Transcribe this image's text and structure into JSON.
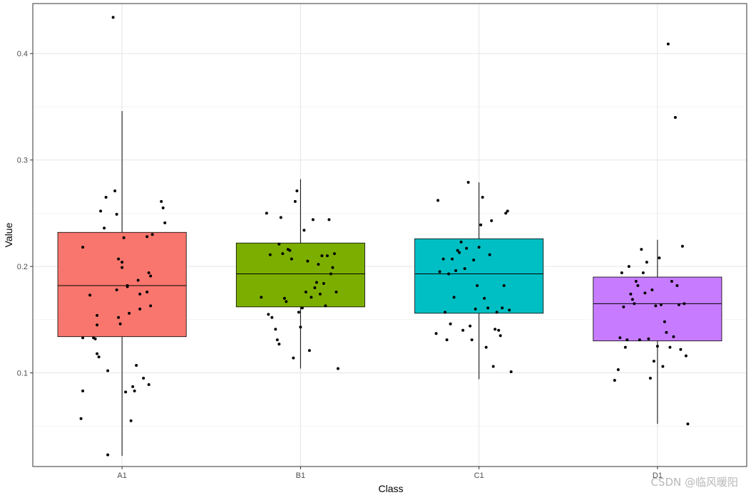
{
  "chart_data": {
    "type": "boxplot",
    "title": "",
    "xlabel": "Class",
    "ylabel": "Value",
    "ylim": [
      0.012,
      0.447
    ],
    "y_ticks": [
      0.1,
      0.2,
      0.3,
      0.4
    ],
    "y_tick_labels": [
      "0.1",
      "0.2",
      "0.3",
      "0.4"
    ],
    "grid": true,
    "categories": [
      "A1",
      "B1",
      "C1",
      "D1"
    ],
    "colors": [
      "#F8766D",
      "#7CAE00",
      "#00BFC4",
      "#C77CFF"
    ],
    "boxes": [
      {
        "category": "A1",
        "whisker_low": 0.022,
        "q1": 0.134,
        "median": 0.182,
        "q3": 0.232,
        "whisker_high": 0.346
      },
      {
        "category": "B1",
        "whisker_low": 0.104,
        "q1": 0.162,
        "median": 0.193,
        "q3": 0.222,
        "whisker_high": 0.282
      },
      {
        "category": "C1",
        "whisker_low": 0.094,
        "q1": 0.156,
        "median": 0.193,
        "q3": 0.226,
        "whisker_high": 0.279
      },
      {
        "category": "D1",
        "whisker_low": 0.052,
        "q1": 0.13,
        "median": 0.165,
        "q3": 0.19,
        "whisker_high": 0.225
      }
    ],
    "points": [
      {
        "category": "A1",
        "jitter": [
          -0.23,
          -0.22,
          -0.22,
          -0.22,
          -0.18,
          -0.16,
          -0.15,
          -0.14,
          -0.14,
          -0.14,
          -0.13,
          -0.12,
          -0.1,
          -0.09,
          -0.08,
          -0.08,
          -0.05,
          -0.04,
          -0.03,
          -0.03,
          -0.02,
          -0.02,
          -0.01,
          0,
          0,
          0.01,
          0.02,
          0.03,
          0.03,
          0.04,
          0.05,
          0.06,
          0.07,
          0.08,
          0.09,
          0.1,
          0.1,
          0.12,
          0.14,
          0.14,
          0.15,
          0.15,
          0.16,
          0.16,
          0.17,
          0.22,
          0.23,
          0.24
        ],
        "values": [
          0.057,
          0.083,
          0.133,
          0.218,
          0.173,
          0.133,
          0.132,
          0.145,
          0.154,
          0.118,
          0.115,
          0.252,
          0.236,
          0.265,
          0.102,
          0.023,
          0.434,
          0.271,
          0.178,
          0.249,
          0.152,
          0.207,
          0.146,
          0.199,
          0.204,
          0.227,
          0.082,
          0.182,
          0.181,
          0.156,
          0.055,
          0.087,
          0.083,
          0.107,
          0.187,
          0.174,
          0.16,
          0.095,
          0.176,
          0.228,
          0.089,
          0.194,
          0.191,
          0.163,
          0.23,
          0.261,
          0.255,
          0.241
        ]
      },
      {
        "category": "B1",
        "jitter": [
          -0.22,
          -0.19,
          -0.18,
          -0.17,
          -0.16,
          -0.14,
          -0.13,
          -0.12,
          -0.12,
          -0.11,
          -0.1,
          -0.09,
          -0.08,
          -0.07,
          -0.06,
          -0.05,
          -0.04,
          -0.03,
          -0.02,
          -0.01,
          0,
          0.01,
          0.02,
          0.03,
          0.04,
          0.05,
          0.06,
          0.07,
          0.08,
          0.09,
          0.1,
          0.11,
          0.12,
          0.13,
          0.14,
          0.15,
          0.16,
          0.17,
          0.18,
          0.19,
          0.2,
          0.21
        ],
        "values": [
          0.171,
          0.25,
          0.155,
          0.211,
          0.152,
          0.141,
          0.131,
          0.127,
          0.221,
          0.246,
          0.212,
          0.17,
          0.167,
          0.216,
          0.215,
          0.207,
          0.114,
          0.261,
          0.271,
          0.157,
          0.143,
          0.161,
          0.234,
          0.176,
          0.205,
          0.121,
          0.171,
          0.244,
          0.18,
          0.185,
          0.202,
          0.174,
          0.21,
          0.184,
          0.163,
          0.21,
          0.244,
          0.193,
          0.199,
          0.212,
          0.176,
          0.104
        ]
      },
      {
        "category": "C1",
        "jitter": [
          -0.24,
          -0.23,
          -0.22,
          -0.2,
          -0.19,
          -0.18,
          -0.17,
          -0.16,
          -0.15,
          -0.14,
          -0.13,
          -0.12,
          -0.11,
          -0.1,
          -0.09,
          -0.08,
          -0.07,
          -0.06,
          -0.05,
          -0.04,
          -0.03,
          -0.02,
          -0.01,
          0,
          0.01,
          0.02,
          0.03,
          0.04,
          0.05,
          0.06,
          0.07,
          0.08,
          0.09,
          0.1,
          0.11,
          0.12,
          0.13,
          0.14,
          0.15,
          0.16,
          0.17,
          0.18
        ],
        "values": [
          0.137,
          0.262,
          0.195,
          0.207,
          0.157,
          0.131,
          0.193,
          0.146,
          0.207,
          0.171,
          0.196,
          0.215,
          0.213,
          0.223,
          0.14,
          0.198,
          0.217,
          0.279,
          0.144,
          0.131,
          0.206,
          0.16,
          0.182,
          0.218,
          0.239,
          0.265,
          0.17,
          0.124,
          0.161,
          0.211,
          0.243,
          0.106,
          0.141,
          0.157,
          0.14,
          0.135,
          0.161,
          0.182,
          0.25,
          0.252,
          0.159,
          0.101
        ]
      },
      {
        "category": "D1",
        "jitter": [
          -0.24,
          -0.22,
          -0.21,
          -0.2,
          -0.19,
          -0.18,
          -0.17,
          -0.16,
          -0.15,
          -0.14,
          -0.13,
          -0.12,
          -0.11,
          -0.1,
          -0.09,
          -0.08,
          -0.07,
          -0.06,
          -0.05,
          -0.04,
          -0.03,
          -0.02,
          -0.01,
          0,
          0.01,
          0.02,
          0.03,
          0.04,
          0.05,
          0.06,
          0.07,
          0.08,
          0.09,
          0.1,
          0.11,
          0.12,
          0.13,
          0.14,
          0.15,
          0.16,
          0.17
        ],
        "values": [
          0.093,
          0.103,
          0.133,
          0.194,
          0.162,
          0.124,
          0.131,
          0.2,
          0.174,
          0.169,
          0.165,
          0.186,
          0.182,
          0.131,
          0.216,
          0.194,
          0.175,
          0.204,
          0.132,
          0.095,
          0.178,
          0.111,
          0.163,
          0.125,
          0.208,
          0.164,
          0.106,
          0.148,
          0.138,
          0.409,
          0.124,
          0.186,
          0.134,
          0.34,
          0.182,
          0.164,
          0.122,
          0.219,
          0.165,
          0.116,
          0.052
        ]
      }
    ]
  },
  "watermark": "CSDN @临风暖阳"
}
